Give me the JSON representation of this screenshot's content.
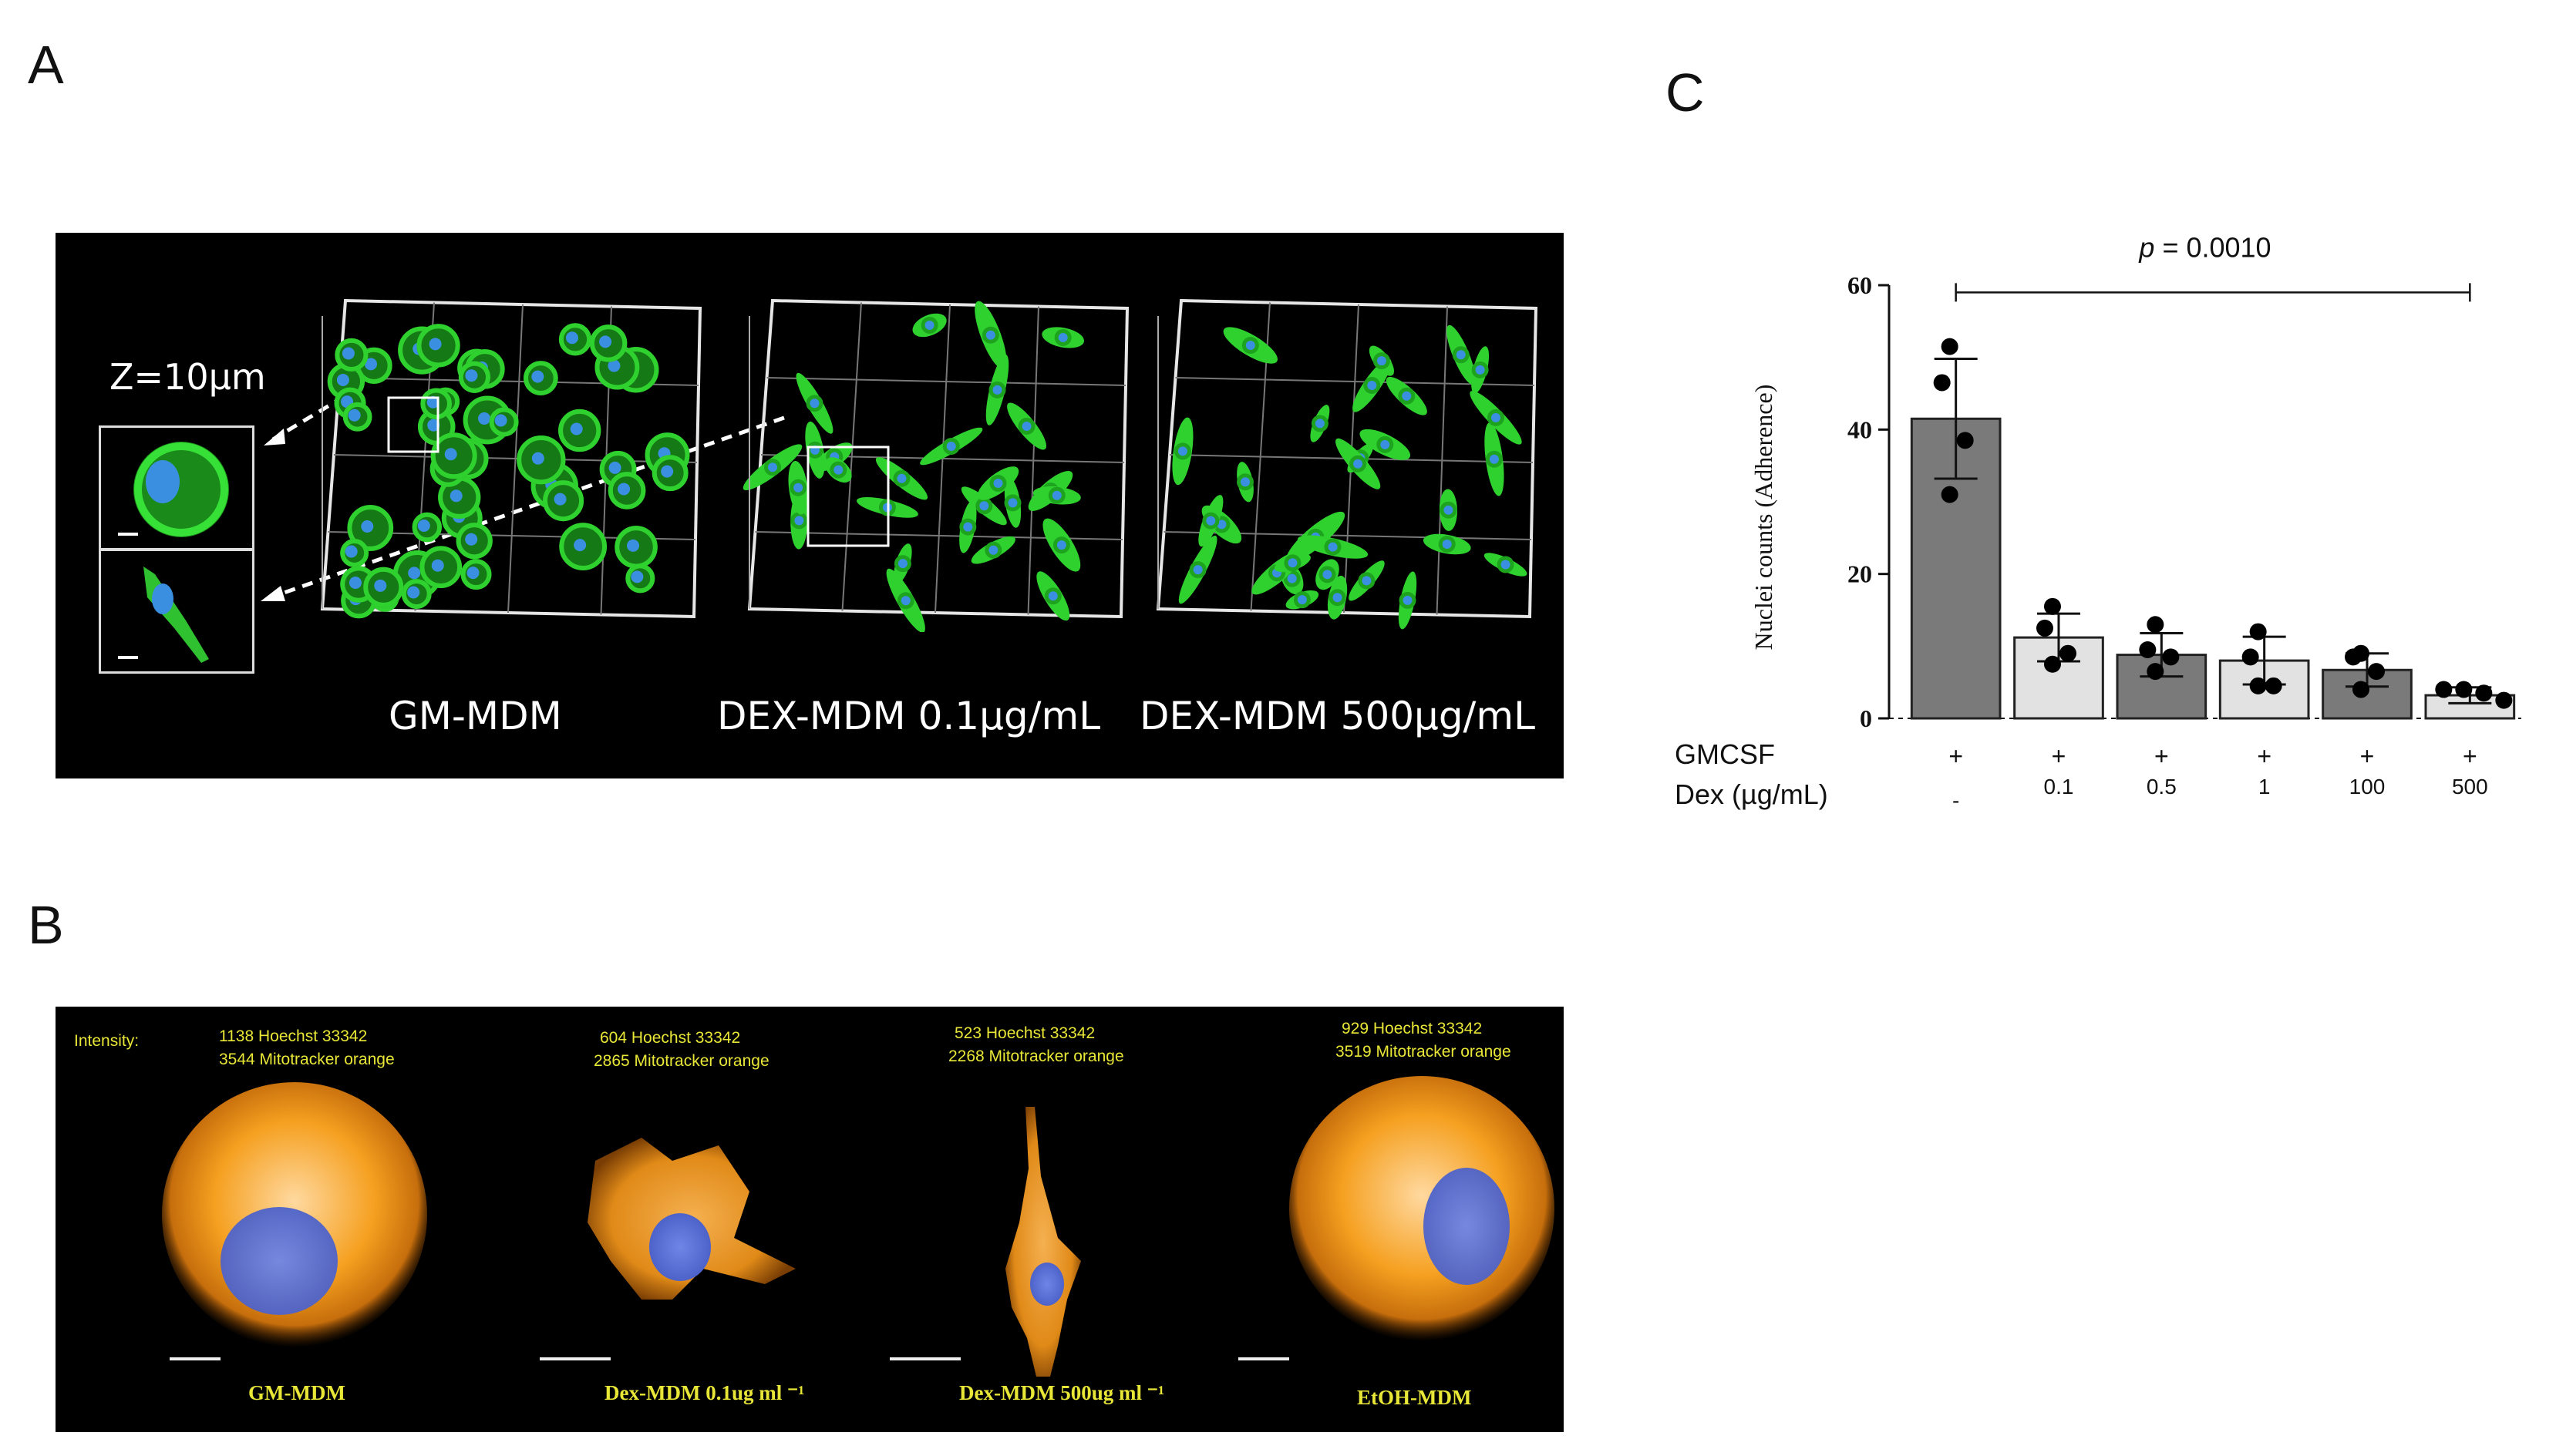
{
  "panel_letters": {
    "a": "A",
    "b": "B",
    "c": "C"
  },
  "panelA": {
    "z_label": "Z=10µm",
    "conditions": [
      "GM-MDM",
      "DEX-MDM 0.1µg/mL",
      "DEX-MDM 500µg/mL"
    ],
    "colors": {
      "membrane": "#2fd12f",
      "nucleus": "#3b8fe0",
      "frame": "#e6e6e6"
    }
  },
  "panelB": {
    "intensity_label": "Intensity:",
    "cells": [
      {
        "name": "GM-MDM",
        "hoechst": "1138 Hoechst 33342",
        "mito": "3544 Mitotracker orange"
      },
      {
        "name": "Dex-MDM 0.1ug ml ⁻¹",
        "hoechst": "604 Hoechst 33342",
        "mito": "2865 Mitotracker orange"
      },
      {
        "name": "Dex-MDM 500ug ml ⁻¹",
        "hoechst": "523 Hoechst 33342",
        "mito": "2268 Mitotracker orange"
      },
      {
        "name": "EtOH-MDM",
        "hoechst": "929 Hoechst 33342",
        "mito": "3519 Mitotracker orange"
      }
    ],
    "colors": {
      "mito": "#f5a020",
      "nucleus": "#5a74d6",
      "text": "#e8e636"
    }
  },
  "chart_data": {
    "type": "bar",
    "title": "",
    "xlabel": "",
    "ylabel": "Nuclei counts (Adherence)",
    "ylim": [
      0,
      60
    ],
    "yticks": [
      0,
      20,
      40,
      60
    ],
    "categories": [
      "GMCSF",
      "0.1",
      "0.5",
      "1",
      "100",
      "500"
    ],
    "values": [
      41.5,
      11.2,
      8.8,
      8.0,
      6.7,
      3.2
    ],
    "sd": [
      8.3,
      3.3,
      3.0,
      3.3,
      2.3,
      1.1
    ],
    "points": [
      [
        51.5,
        46.5,
        38.5,
        31.0
      ],
      [
        15.5,
        12.5,
        9.0,
        7.5
      ],
      [
        13.0,
        9.5,
        8.5,
        6.5
      ],
      [
        12.0,
        8.5,
        4.5,
        4.5
      ],
      [
        9.0,
        8.5,
        6.5,
        4.0
      ],
      [
        4.0,
        4.0,
        3.5,
        2.5
      ]
    ],
    "bar_colors": [
      "#7a7a7a",
      "#e2e2e2",
      "#7a7a7a",
      "#e2e2e2",
      "#7a7a7a",
      "#e2e2e2"
    ],
    "row_labels": [
      "GMCSF",
      "Dex (µg/mL)"
    ],
    "gmcsf_row": [
      "+",
      "+",
      "+",
      "+",
      "+",
      "+"
    ],
    "dex_row": [
      "-",
      "0.1",
      "0.5",
      "1",
      "100",
      "500"
    ],
    "annotation": {
      "p_label": "p",
      "p_text": " = 0.0010",
      "from": 0,
      "to": 5
    }
  }
}
